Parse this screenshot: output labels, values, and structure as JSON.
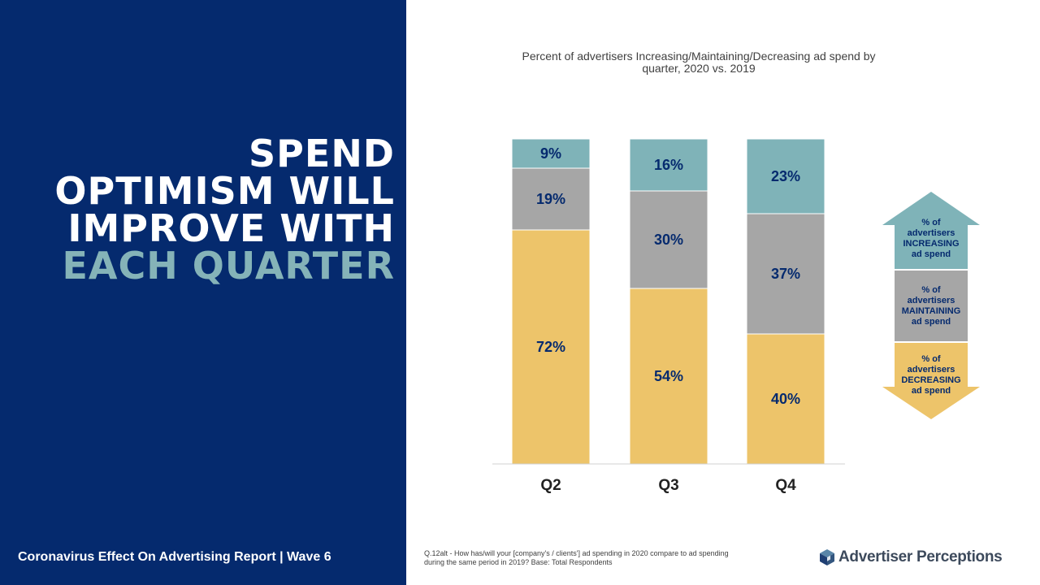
{
  "headline": {
    "lines": [
      "SPEND",
      "OPTIMISM WILL",
      "IMPROVE WITH"
    ],
    "accent_line": "EACH QUARTER"
  },
  "footer": {
    "report_label": "Coronavirus Effect On Advertising Report  |  Wave 6",
    "footnote": "Q.12alt - How has/will your [company's / clients'] ad spending in 2020 compare to ad spending during the same period in 2019?  Base: Total Respondents"
  },
  "logo": {
    "text": "Advertiser Perceptions",
    "icon": "cube-logo-icon"
  },
  "colors": {
    "panel": "#052a6e",
    "accent": "#85b3b8",
    "increasing": "#7fb3b8",
    "maintaining": "#a6a6a6",
    "decreasing": "#edc46a"
  },
  "chart_data": {
    "type": "bar",
    "stacked": true,
    "title": "Percent of advertisers Increasing/Maintaining/Decreasing ad spend by quarter, 2020 vs. 2019",
    "categories": [
      "Q2",
      "Q3",
      "Q4"
    ],
    "series": [
      {
        "name": "% of advertisers DECREASING ad spend",
        "values": [
          72,
          54,
          40
        ],
        "labels": [
          "72%",
          "54%",
          "40%"
        ],
        "color": "#edc46a"
      },
      {
        "name": "% of advertisers MAINTAINING ad spend",
        "values": [
          19,
          30,
          37
        ],
        "labels": [
          "19%",
          "30%",
          "37%"
        ],
        "color": "#a6a6a6"
      },
      {
        "name": "% of advertisers INCREASING ad spend",
        "values": [
          9,
          16,
          23
        ],
        "labels": [
          "9%",
          "16%",
          "23%"
        ],
        "color": "#7fb3b8"
      }
    ],
    "ylim": [
      0,
      100
    ],
    "grid": false,
    "legend_placement": "right",
    "legend": [
      {
        "lines": [
          "% of",
          "advertisers",
          "INCREASING",
          "ad spend"
        ],
        "shape": "up-arrow"
      },
      {
        "lines": [
          "% of",
          "advertisers",
          "MAINTAINING",
          "ad spend"
        ],
        "shape": "box"
      },
      {
        "lines": [
          "% of",
          "advertisers",
          "DECREASING",
          "ad spend"
        ],
        "shape": "down-arrow"
      }
    ]
  }
}
